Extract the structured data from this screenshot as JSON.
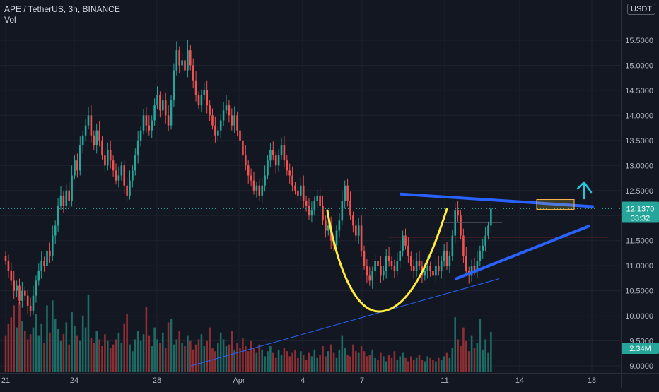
{
  "header": {
    "symbol_line": "APE / TetherUS, 3h, BINANCE",
    "volume_label": "Vol"
  },
  "price_scale": {
    "currency": "USDT",
    "last_price_label": "12.1370",
    "countdown_label": "33:32",
    "volume_label": "2.34M"
  },
  "colors": {
    "background": "#131722",
    "up": "#26a69a",
    "down": "#ef5350",
    "volume_up": "#1e6a64",
    "volume_down": "#8c2f33",
    "text": "#b2b5be",
    "trendline_blue": "#2962ff",
    "cup_curve": "#ffeb3b",
    "arrow": "#26c6da",
    "last_price_badge": "#26a69a"
  },
  "chart_data": {
    "type": "candlestick",
    "interval": "3h",
    "symbol": "APE / TetherUS",
    "exchange": "BINANCE",
    "x_tick_labels": [
      "21",
      "24",
      "28",
      "Apr",
      "4",
      "7",
      "11",
      "14",
      "18"
    ],
    "y_tick_labels": [
      "9.0000",
      "9.5000",
      "10.0000",
      "10.5000",
      "11.0000",
      "11.5000",
      "12.0000",
      "12.5000",
      "13.0000",
      "13.5000",
      "14.0000",
      "14.5000",
      "15.0000",
      "15.5000"
    ],
    "ylim": [
      8.95,
      15.9
    ],
    "last_price": 12.137,
    "candles_close": [
      11.1,
      10.9,
      10.7,
      10.5,
      10.6,
      10.3,
      10.5,
      10.4,
      10.2,
      10.1,
      10.4,
      10.7,
      10.9,
      11.1,
      11.0,
      11.3,
      11.2,
      11.6,
      11.8,
      12.2,
      12.4,
      12.2,
      12.5,
      12.3,
      12.8,
      13.1,
      12.9,
      13.4,
      13.6,
      13.8,
      14.0,
      13.6,
      13.4,
      13.7,
      13.5,
      13.2,
      13.0,
      13.3,
      13.1,
      12.9,
      12.7,
      12.8,
      13.0,
      12.6,
      12.4,
      12.7,
      12.9,
      13.2,
      13.5,
      13.7,
      14.0,
      13.8,
      13.7,
      13.9,
      14.2,
      14.4,
      14.1,
      14.3,
      14.0,
      13.8,
      14.3,
      14.9,
      15.3,
      15.0,
      15.1,
      14.9,
      15.3,
      15.0,
      14.7,
      14.4,
      14.2,
      14.4,
      14.5,
      14.2,
      14.0,
      13.8,
      13.6,
      13.7,
      13.9,
      14.1,
      14.2,
      14.0,
      13.8,
      14.0,
      13.7,
      13.5,
      13.2,
      13.0,
      12.8,
      12.7,
      12.5,
      12.6,
      12.4,
      12.6,
      12.8,
      13.1,
      13.3,
      13.2,
      13.0,
      13.2,
      13.4,
      13.1,
      12.9,
      12.8,
      12.6,
      12.5,
      12.4,
      12.6,
      12.3,
      12.2,
      12.0,
      12.1,
      12.3,
      12.4,
      12.2,
      11.9,
      11.7,
      11.8,
      11.5,
      11.4,
      11.7,
      11.9,
      12.3,
      12.6,
      12.3,
      12.0,
      11.8,
      11.6,
      11.8,
      11.3,
      11.0,
      10.8,
      10.7,
      10.9,
      11.1,
      11.0,
      10.8,
      10.9,
      11.2,
      11.1,
      11.0,
      10.9,
      11.1,
      11.3,
      11.6,
      11.4,
      11.2,
      11.0,
      10.9,
      11.1,
      11.0,
      10.8,
      10.9,
      11.0,
      10.9,
      10.8,
      11.0,
      10.9,
      11.1,
      11.3,
      11.0,
      11.2,
      11.6,
      12.1,
      12.0,
      11.6,
      11.2,
      10.9,
      10.8,
      11.0,
      10.9,
      11.1,
      11.3,
      11.4,
      11.6,
      11.8,
      12.137
    ],
    "volume_millions": [
      2.1,
      2.8,
      3.2,
      3.9,
      2.6,
      4.1,
      3.0,
      2.4,
      1.9,
      2.2,
      2.6,
      3.4,
      2.1,
      2.8,
      1.7,
      3.9,
      2.3,
      4.2,
      3.1,
      2.5,
      1.8,
      2.2,
      2.9,
      1.6,
      3.5,
      2.7,
      2.1,
      1.8,
      3.3,
      2.6,
      4.5,
      2.0,
      1.7,
      2.4,
      1.9,
      1.5,
      2.2,
      1.8,
      1.4,
      1.6,
      1.9,
      2.3,
      1.7,
      2.8,
      3.4,
      1.6,
      1.2,
      1.9,
      2.4,
      1.8,
      2.2,
      3.8,
      2.1,
      1.5,
      2.6,
      1.9,
      1.7,
      2.3,
      1.4,
      2.9,
      3.1,
      1.6,
      1.9,
      2.4,
      1.7,
      1.5,
      2.1,
      1.8,
      1.3,
      1.6,
      1.9,
      2.2,
      1.5,
      1.8,
      2.6,
      1.4,
      1.2,
      1.7,
      2.3,
      1.9,
      1.5,
      1.6,
      2.4,
      1.3,
      1.7,
      1.4,
      2.0,
      1.5,
      1.2,
      1.8,
      1.4,
      1.1,
      1.6,
      1.3,
      0.9,
      1.2,
      1.5,
      1.1,
      0.8,
      1.3,
      1.0,
      1.4,
      1.2,
      0.9,
      1.1,
      1.3,
      0.8,
      1.2,
      1.0,
      0.7,
      1.1,
      0.9,
      1.3,
      0.8,
      1.0,
      1.5,
      0.9,
      1.2,
      1.6,
      1.1,
      0.8,
      1.3,
      2.1,
      1.4,
      1.0,
      0.9,
      1.6,
      1.2,
      1.1,
      1.5,
      1.2,
      0.9,
      1.0,
      1.3,
      0.8,
      0.7,
      1.1,
      0.9,
      0.6,
      1.0,
      0.8,
      1.2,
      0.7,
      0.9,
      1.1,
      0.8,
      0.6,
      0.9,
      0.7,
      0.8,
      1.0,
      0.7,
      0.6,
      0.9,
      0.8,
      0.7,
      0.6,
      0.8,
      0.7,
      0.9,
      1.1,
      0.8,
      1.4,
      3.2,
      1.9,
      1.5,
      2.6,
      1.8,
      1.2,
      2.1,
      1.4,
      1.7,
      3.1,
      1.3,
      1.9,
      1.1,
      2.34
    ]
  }
}
